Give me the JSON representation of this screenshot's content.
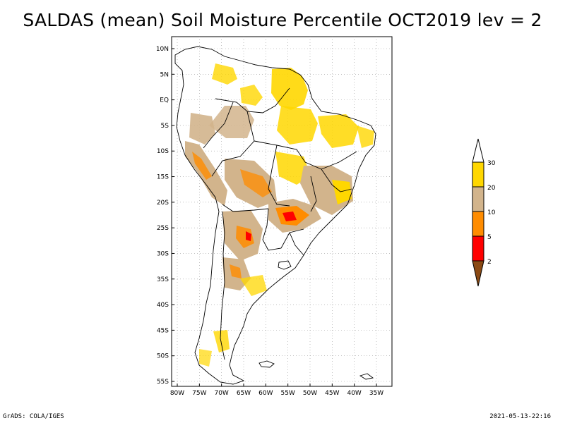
{
  "title": "SALDAS (mean) Soil Moisture Percentile OCT2019 lev = 2",
  "map": {
    "lat_labels": [
      "10N",
      "5N",
      "EQ",
      "5S",
      "10S",
      "15S",
      "20S",
      "25S",
      "30S",
      "35S",
      "40S",
      "45S",
      "50S",
      "55S"
    ],
    "lon_labels": [
      "80W",
      "75W",
      "70W",
      "65W",
      "60W",
      "55W",
      "50W",
      "45W",
      "40W",
      "35W"
    ],
    "region": "South America"
  },
  "legend": {
    "labels": [
      "2",
      "5",
      "10",
      "20",
      "30"
    ],
    "colors": [
      "#8b4a14",
      "#ff0000",
      "#ff8c00",
      "#d2b48c",
      "#ffd700"
    ]
  },
  "footer": {
    "left": "GrADS: COLA/IGES",
    "right": "2021-05-13-22:16"
  }
}
